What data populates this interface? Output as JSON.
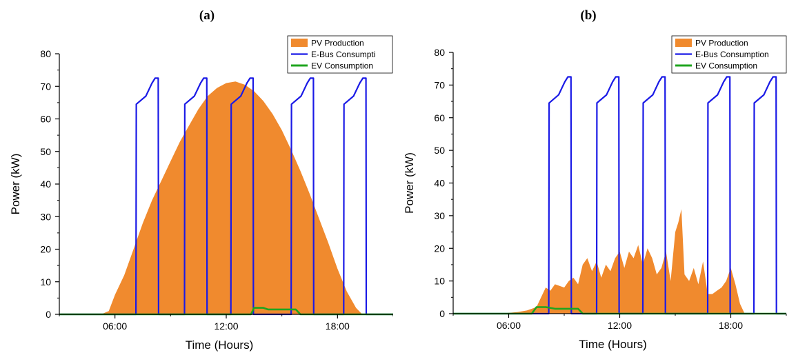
{
  "colors": {
    "pv": "#f08a2e",
    "ebus": "#1a1ae6",
    "ev": "#1fa51f",
    "axis": "#000000"
  },
  "chart_data": [
    {
      "panel_label": "(a)",
      "type": "area",
      "xlabel": "Time (Hours)",
      "ylabel": "Power (kW)",
      "ylim": [
        0,
        80
      ],
      "xlim": [
        "03:00",
        "21:00"
      ],
      "x_ticks": [
        "06:00",
        "12:00",
        "18:00"
      ],
      "y_ticks": [
        0,
        10,
        20,
        30,
        40,
        50,
        60,
        70,
        80
      ],
      "legend": {
        "placement": "top-right",
        "entries": [
          "PV Production",
          "E-Bus Consumpti",
          "EV Consumption"
        ]
      },
      "series": [
        {
          "name": "PV Production",
          "kind": "area",
          "x": [
            "05:15",
            "05:40",
            "06:00",
            "06:30",
            "07:00",
            "07:30",
            "08:00",
            "08:30",
            "09:00",
            "09:30",
            "10:00",
            "10:30",
            "11:00",
            "11:30",
            "12:00",
            "12:30",
            "13:00",
            "13:30",
            "14:00",
            "14:30",
            "15:00",
            "15:30",
            "16:00",
            "16:30",
            "17:00",
            "17:30",
            "18:00",
            "18:30",
            "19:00",
            "19:20"
          ],
          "y": [
            0,
            1,
            6,
            12,
            20,
            28,
            35,
            41,
            47,
            53,
            58,
            63,
            67,
            69.5,
            71,
            71.5,
            70.5,
            68.5,
            65.5,
            61.5,
            56.5,
            50.5,
            44,
            37,
            29.5,
            22,
            14,
            7,
            2,
            0
          ]
        },
        {
          "name": "E-Bus Consumpti",
          "kind": "line",
          "x": [
            "03:00",
            "07:08",
            "07:09",
            "07:40",
            "08:00",
            "08:10",
            "08:20",
            "08:21",
            "09:45",
            "09:46",
            "10:17",
            "10:37",
            "10:47",
            "10:57",
            "10:58",
            "12:15",
            "12:16",
            "12:47",
            "13:07",
            "13:17",
            "13:27",
            "13:28",
            "15:30",
            "15:31",
            "16:02",
            "16:22",
            "16:32",
            "16:42",
            "16:43",
            "18:20",
            "18:21",
            "18:52",
            "19:12",
            "19:22",
            "19:32",
            "19:33",
            "21:00"
          ],
          "y": [
            0,
            0,
            64.5,
            67,
            71,
            72.5,
            72.5,
            0,
            0,
            64.5,
            67,
            71,
            72.5,
            72.5,
            0,
            0,
            64.5,
            67,
            71,
            72.5,
            72.5,
            0,
            0,
            64.5,
            67,
            71,
            72.5,
            72.5,
            0,
            0,
            64.5,
            67,
            71,
            72.5,
            72.5,
            0,
            0
          ]
        },
        {
          "name": "EV Consumption",
          "kind": "line",
          "x": [
            "03:00",
            "13:20",
            "13:30",
            "14:00",
            "14:15",
            "14:30",
            "15:00",
            "15:30",
            "15:45",
            "16:00",
            "21:00"
          ],
          "y": [
            0,
            0,
            2,
            2,
            1.5,
            1.5,
            1.5,
            1.5,
            1.5,
            0,
            0
          ]
        }
      ]
    },
    {
      "panel_label": "(b)",
      "type": "area",
      "xlabel": "Time (Hours)",
      "ylabel": "Power (kW)",
      "ylim": [
        0,
        80
      ],
      "xlim": [
        "03:00",
        "21:00"
      ],
      "x_ticks": [
        "06:00",
        "12:00",
        "18:00"
      ],
      "y_ticks": [
        0,
        10,
        20,
        30,
        40,
        50,
        60,
        70,
        80
      ],
      "legend": {
        "placement": "top-right",
        "entries": [
          "PV Production",
          "E-Bus Consumption",
          "EV Consumption"
        ]
      },
      "series": [
        {
          "name": "PV Production",
          "kind": "area",
          "x": [
            "05:30",
            "06:30",
            "07:00",
            "07:30",
            "07:45",
            "08:00",
            "08:15",
            "08:30",
            "09:00",
            "09:15",
            "09:30",
            "09:45",
            "10:00",
            "10:15",
            "10:30",
            "10:45",
            "11:00",
            "11:15",
            "11:30",
            "11:45",
            "12:00",
            "12:15",
            "12:30",
            "12:45",
            "13:00",
            "13:15",
            "13:30",
            "13:45",
            "14:00",
            "14:15",
            "14:30",
            "14:45",
            "15:00",
            "15:10",
            "15:20",
            "15:30",
            "15:45",
            "16:00",
            "16:15",
            "16:30",
            "16:45",
            "17:00",
            "17:15",
            "17:30",
            "17:45",
            "18:00",
            "18:15",
            "18:30",
            "18:45"
          ],
          "y": [
            0,
            0.5,
            1,
            2,
            5,
            8,
            7,
            9,
            8,
            10,
            11,
            9,
            15,
            17,
            13,
            16,
            11,
            15,
            13,
            17,
            19,
            14,
            19,
            17,
            21,
            15,
            20,
            17,
            12,
            14,
            19,
            10,
            25,
            28,
            32,
            12,
            10,
            14,
            9,
            16,
            6,
            6,
            7,
            8,
            10,
            14,
            9,
            3,
            0
          ]
        },
        {
          "name": "E-Bus Consumption",
          "kind": "line",
          "x": [
            "03:00",
            "08:10",
            "08:11",
            "08:42",
            "09:02",
            "09:12",
            "09:22",
            "09:23",
            "10:45",
            "10:46",
            "11:17",
            "11:37",
            "11:47",
            "11:57",
            "11:58",
            "13:15",
            "13:16",
            "13:47",
            "14:07",
            "14:17",
            "14:27",
            "14:28",
            "16:45",
            "16:46",
            "17:17",
            "17:37",
            "17:47",
            "17:57",
            "17:58",
            "19:15",
            "19:16",
            "19:47",
            "20:07",
            "20:17",
            "20:27",
            "20:28",
            "21:00"
          ],
          "y": [
            0,
            0,
            64.5,
            67,
            71,
            72.5,
            72.5,
            0,
            0,
            64.5,
            67,
            71,
            72.5,
            72.5,
            0,
            0,
            64.5,
            67,
            71,
            72.5,
            72.5,
            0,
            0,
            64.5,
            67,
            71,
            72.5,
            72.5,
            0,
            0,
            64.5,
            67,
            71,
            72.5,
            72.5,
            0,
            0
          ]
        },
        {
          "name": "EV Consumption",
          "kind": "line",
          "x": [
            "03:00",
            "07:15",
            "07:30",
            "08:00",
            "08:30",
            "09:00",
            "09:30",
            "09:45",
            "10:00",
            "21:00"
          ],
          "y": [
            0,
            0,
            2,
            2,
            1.5,
            1.5,
            1.5,
            1.5,
            0,
            0
          ]
        }
      ]
    }
  ]
}
